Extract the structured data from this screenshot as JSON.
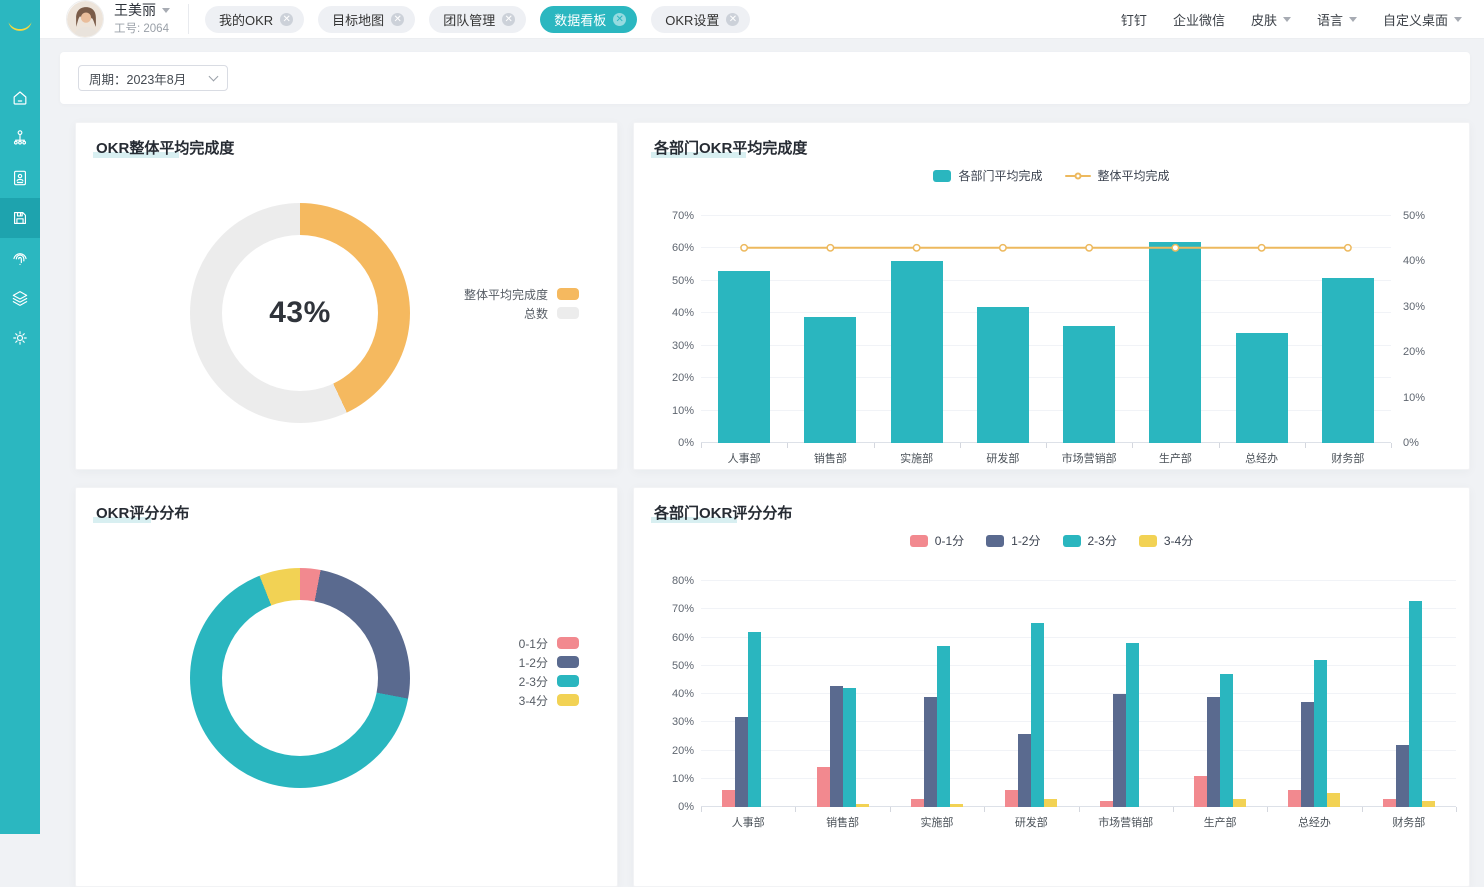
{
  "colors": {
    "teal": "#2AB6BF",
    "orange": "#F5B95F",
    "track_gray": "#ECECEC",
    "pink": "#F2898F",
    "slate": "#5A6A8F",
    "yellow": "#F2D254",
    "line_yellow": "#EDB95E"
  },
  "sidebar": {
    "icons": [
      "home",
      "org-structure",
      "document-user",
      "data-board",
      "fingerprint",
      "layers",
      "settings"
    ],
    "active_icon": "data-board"
  },
  "header": {
    "user": {
      "name": "王美丽",
      "employee_no": "工号: 2064"
    },
    "tabs": [
      {
        "label": "我的OKR",
        "active": false
      },
      {
        "label": "目标地图",
        "active": false
      },
      {
        "label": "团队管理",
        "active": false
      },
      {
        "label": "数据看板",
        "active": true
      },
      {
        "label": "OKR设置",
        "active": false
      }
    ],
    "menu": [
      {
        "label": "钉钉",
        "dropdown": false
      },
      {
        "label": "企业微信",
        "dropdown": false
      },
      {
        "label": "皮肤",
        "dropdown": true
      },
      {
        "label": "语言",
        "dropdown": true
      },
      {
        "label": "自定义桌面",
        "dropdown": true
      }
    ]
  },
  "filter": {
    "period": "周期：2023年8月"
  },
  "chart_data": [
    {
      "type": "pie",
      "title": "OKR整体平均完成度",
      "center_label": "43%",
      "legend_position": "right",
      "segments": [
        {
          "label": "整体平均完成度",
          "value": 43,
          "color": "#F5B95F"
        },
        {
          "label": "总数",
          "value": 57,
          "color": "#ECECEC"
        }
      ]
    },
    {
      "type": "bar",
      "title": "各部门OKR平均完成度",
      "legend_position": "top",
      "categories": [
        "人事部",
        "销售部",
        "实施部",
        "研发部",
        "市场营销部",
        "生产部",
        "总经办",
        "财务部"
      ],
      "series": [
        {
          "name": "各部门平均完成",
          "type": "bar",
          "axis": "left",
          "color": "#2AB6BF",
          "values": [
            53,
            39,
            56,
            42,
            36,
            62,
            34,
            51
          ]
        },
        {
          "name": "整体平均完成",
          "type": "line",
          "axis": "right",
          "color": "#EDB95E",
          "values": [
            43,
            43,
            43,
            43,
            43,
            43,
            43,
            43
          ]
        }
      ],
      "left_axis": {
        "min": 0,
        "max": 70,
        "unit": "%"
      },
      "right_axis": {
        "min": 0,
        "max": 50,
        "unit": "%"
      },
      "grid": true
    },
    {
      "type": "pie",
      "title": "OKR评分分布",
      "legend_position": "right",
      "segments": [
        {
          "label": "0-1分",
          "value": 3,
          "color": "#F2898F"
        },
        {
          "label": "1-2分",
          "value": 25,
          "color": "#5A6A8F"
        },
        {
          "label": "2-3分",
          "value": 66,
          "color": "#2AB6BF"
        },
        {
          "label": "3-4分",
          "value": 6,
          "color": "#F2D254"
        }
      ]
    },
    {
      "type": "bar",
      "title": "各部门OKR评分分布",
      "legend_position": "top",
      "categories": [
        "人事部",
        "销售部",
        "实施部",
        "研发部",
        "市场营销部",
        "生产部",
        "总经办",
        "财务部"
      ],
      "series": [
        {
          "name": "0-1分",
          "type": "bar",
          "color": "#F2898F",
          "values": [
            6,
            14,
            3,
            6,
            2,
            11,
            6,
            3
          ]
        },
        {
          "name": "1-2分",
          "type": "bar",
          "color": "#5A6A8F",
          "values": [
            32,
            43,
            39,
            26,
            40,
            39,
            37,
            22
          ]
        },
        {
          "name": "2-3分",
          "type": "bar",
          "color": "#2AB6BF",
          "values": [
            62,
            42,
            57,
            65,
            58,
            47,
            52,
            73
          ]
        },
        {
          "name": "3-4分",
          "type": "bar",
          "color": "#F2D254",
          "values": [
            0,
            1,
            1,
            3,
            0,
            3,
            5,
            2
          ]
        }
      ],
      "left_axis": {
        "min": 0,
        "max": 80,
        "unit": "%"
      },
      "grid": true
    }
  ]
}
